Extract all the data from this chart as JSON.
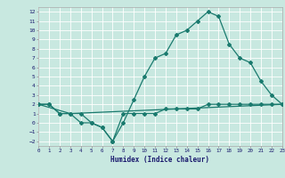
{
  "xlabel": "Humidex (Indice chaleur)",
  "xlim": [
    0,
    23
  ],
  "ylim": [
    -2.5,
    12.5
  ],
  "xticks": [
    0,
    1,
    2,
    3,
    4,
    5,
    6,
    7,
    8,
    9,
    10,
    11,
    12,
    13,
    14,
    15,
    16,
    17,
    18,
    19,
    20,
    21,
    22,
    23
  ],
  "yticks": [
    -2,
    -1,
    0,
    1,
    2,
    3,
    4,
    5,
    6,
    7,
    8,
    9,
    10,
    11,
    12
  ],
  "background_color": "#c8e8e0",
  "grid_color": "#ffffff",
  "line_color": "#1a7a6e",
  "curve1_x": [
    0,
    1,
    2,
    3,
    4,
    5,
    6,
    7,
    8,
    9,
    10,
    11,
    12,
    13,
    14,
    15,
    16,
    17,
    18,
    19,
    20,
    21,
    22,
    23
  ],
  "curve1_y": [
    2,
    2,
    1,
    1,
    1,
    0,
    -0.5,
    -2,
    0,
    2.5,
    5,
    7,
    7.5,
    9.5,
    10,
    11,
    12,
    11.5,
    8.5,
    7,
    6.5,
    4.5,
    3,
    2
  ],
  "curve2_x": [
    0,
    1,
    2,
    3,
    4,
    5,
    6,
    7,
    8,
    9,
    10,
    11,
    12,
    13,
    14,
    15,
    16,
    17,
    18,
    19,
    20,
    21,
    22,
    23
  ],
  "curve2_y": [
    2,
    2,
    1,
    1,
    0,
    0,
    -0.5,
    -2,
    1,
    1,
    1,
    1,
    1.5,
    1.5,
    1.5,
    1.5,
    2,
    2,
    2,
    2,
    2,
    2,
    2,
    2
  ],
  "curve3_x": [
    0,
    3,
    23
  ],
  "curve3_y": [
    2,
    1,
    2
  ]
}
